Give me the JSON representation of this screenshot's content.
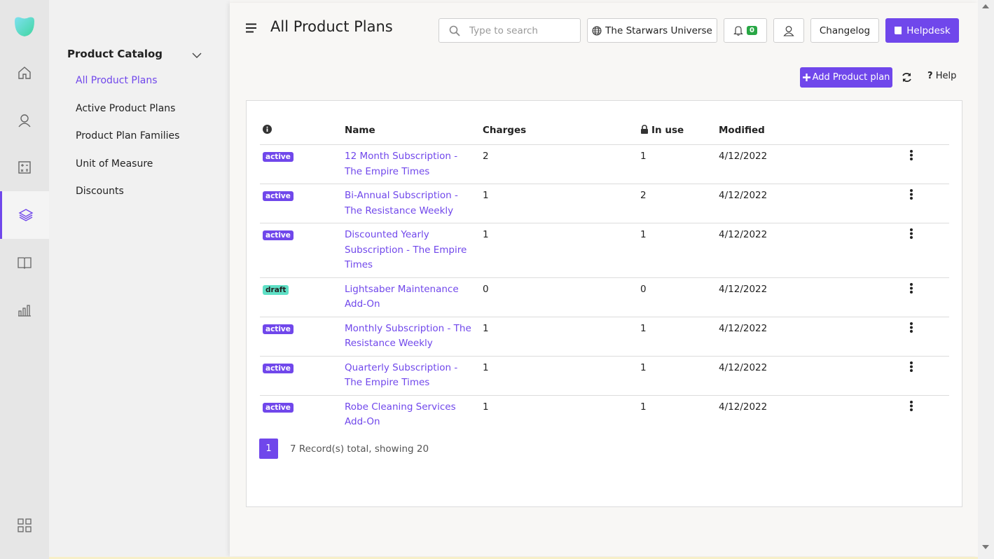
{
  "sidebar": {
    "section": "Product Catalog",
    "items": [
      "All Product Plans",
      "Active Product Plans",
      "Product Plan Families",
      "Unit of Measure",
      "Discounts"
    ]
  },
  "header": {
    "title": "All Product Plans",
    "search_placeholder": "Type to search",
    "workspace": "The Starwars Universe",
    "notifications": 0,
    "changelog": "Changelog",
    "helpdesk": "Helpdesk"
  },
  "toolbar": {
    "add": "Add Product plan",
    "help": "Help"
  },
  "table": {
    "columns": [
      "Name",
      "Charges",
      "In use",
      "Modified"
    ],
    "rows": [
      [
        "active",
        "12 Month Subscription - The Empire Times",
        2,
        1,
        "4/12/2022"
      ],
      [
        "active",
        "Bi-Annual Subscription - The Resistance Weekly",
        1,
        2,
        "4/12/2022"
      ],
      [
        "active",
        "Discounted Yearly Subscription - The Empire Times",
        1,
        1,
        "4/12/2022"
      ],
      [
        "draft",
        "Lightsaber Maintenance Add-On",
        0,
        0,
        "4/12/2022"
      ],
      [
        "active",
        "Monthly Subscription - The Resistance Weekly",
        1,
        1,
        "4/12/2022"
      ],
      [
        "active",
        "Quarterly Subscription - The Empire Times",
        1,
        1,
        "4/12/2022"
      ],
      [
        "active",
        "Robe Cleaning Services Add-On",
        1,
        1,
        "4/12/2022"
      ]
    ]
  },
  "pagination": {
    "page": 1,
    "summary": "7 Record(s) total, showing 20"
  }
}
